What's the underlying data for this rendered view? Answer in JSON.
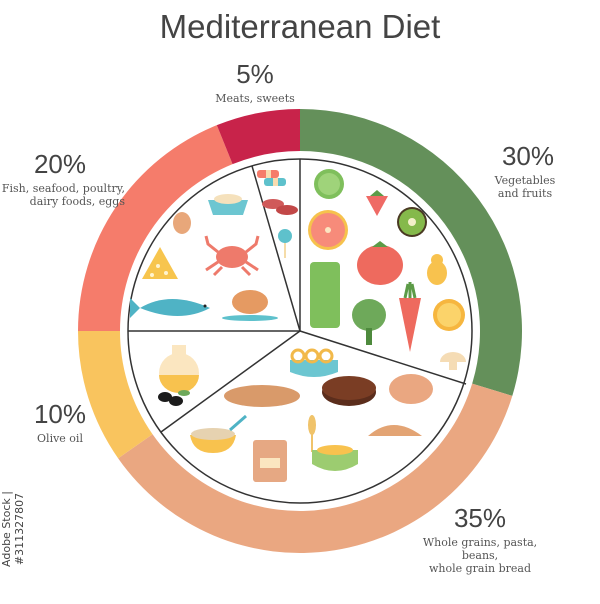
{
  "title": "Mediterranean Diet",
  "credit": "Adobe Stock | #311327807",
  "colors": {
    "vegetables": "#64905a",
    "grains": "#eaa781",
    "olive_oil": "#f9c45e",
    "fish": "#f57c6b",
    "meats": "#c8234a",
    "plate_line": "#333333"
  },
  "labels": {
    "meats": {
      "pct": "5%",
      "desc": "Meats, sweets"
    },
    "fish": {
      "pct": "20%",
      "desc_line1": "Fish, seafood, poultry,",
      "desc_line2": "dairy foods, eggs"
    },
    "vegetables": {
      "pct": "30%",
      "desc_line1": "Vegetables",
      "desc_line2": "and fruits"
    },
    "olive_oil": {
      "pct": "10%",
      "desc": "Olive oil"
    },
    "grains": {
      "pct": "35%",
      "desc_line1": "Whole grains, pasta, beans,",
      "desc_line2": "whole grain bread"
    }
  },
  "plate_icons": {
    "meats_sweets": [
      "candy",
      "sausage",
      "lollipop"
    ],
    "fish_dairy": [
      "bowl-of-grain",
      "egg",
      "crab",
      "cheese",
      "fish",
      "roast-chicken"
    ],
    "vegetables_fruits": [
      "lime",
      "strawberry",
      "grapefruit",
      "kiwi",
      "tomato",
      "pear",
      "asparagus",
      "artichoke",
      "carrot",
      "orange",
      "mushroom"
    ],
    "olive_oil": [
      "oil-jug",
      "olives"
    ],
    "grains": [
      "pasta-bowl",
      "baguette",
      "dark-bread",
      "round-bread",
      "porridge",
      "croissant",
      "flour-bag",
      "wheat",
      "grain-bowl"
    ]
  },
  "chart_data": {
    "type": "pie",
    "title": "Mediterranean Diet",
    "style": "donut",
    "categories": [
      "Vegetables and fruits",
      "Whole grains, pasta, beans, whole grain bread",
      "Olive oil",
      "Fish, seafood, poultry, dairy foods, eggs",
      "Meats, sweets"
    ],
    "values": [
      30,
      35,
      10,
      20,
      5
    ],
    "unit": "%",
    "colors": [
      "#64905a",
      "#eaa781",
      "#f9c45e",
      "#f57c6b",
      "#c8234a"
    ],
    "start_angle": "12 o'clock",
    "direction": "clockwise",
    "legend": "none (direct labels around ring)"
  }
}
